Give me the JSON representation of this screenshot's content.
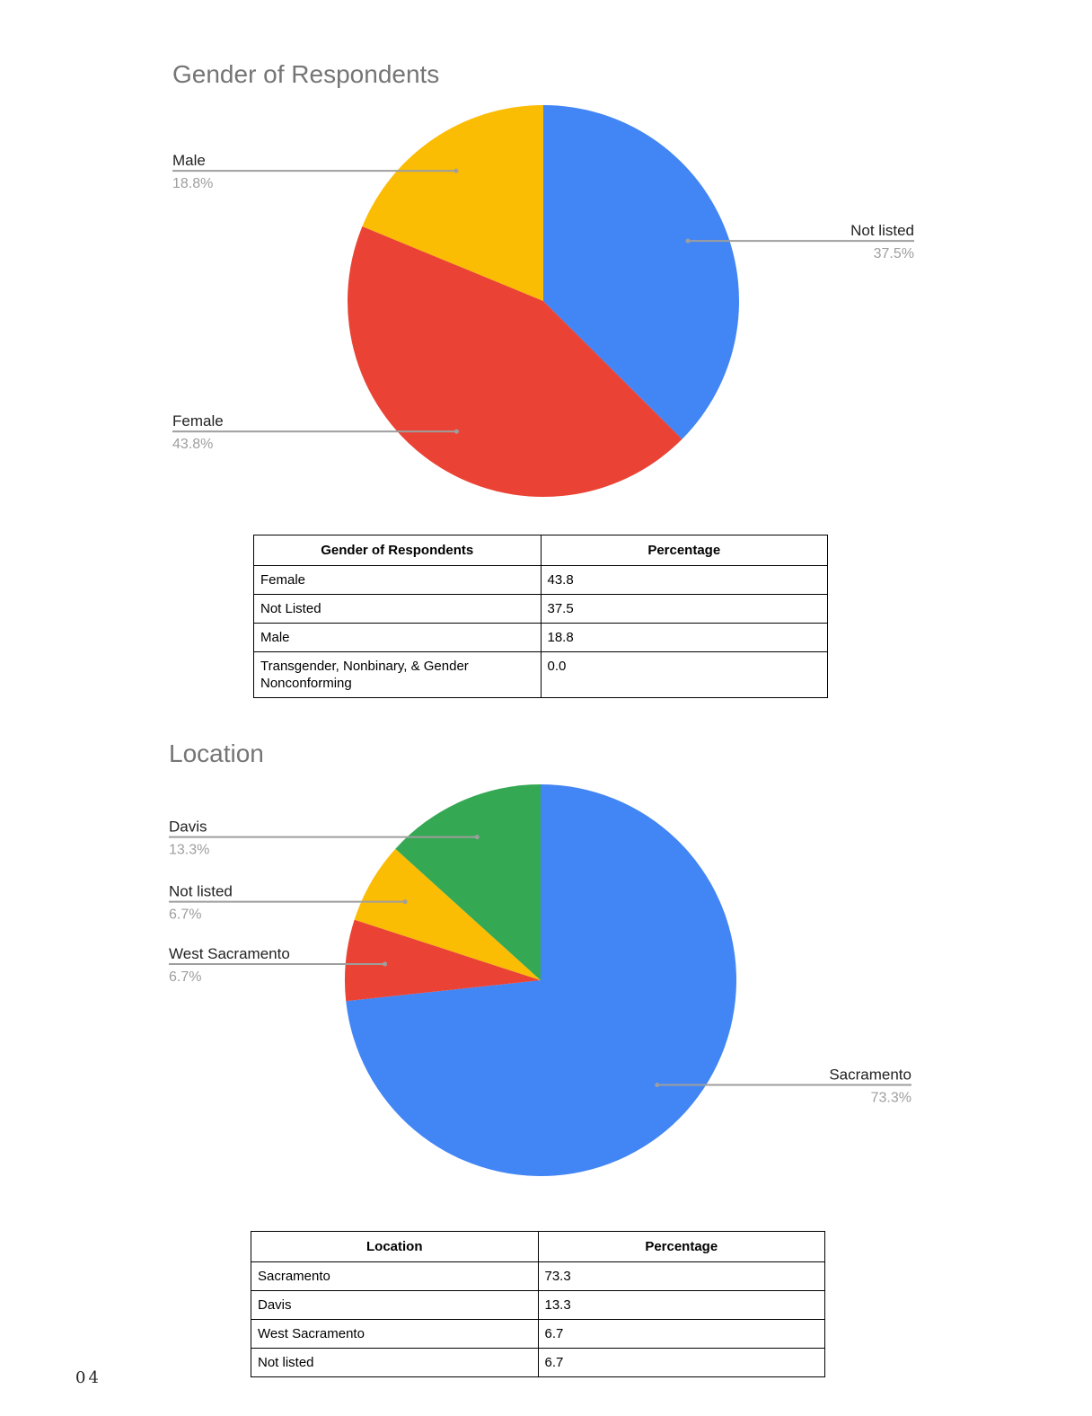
{
  "chart_data": [
    {
      "type": "pie",
      "title": "Gender of Respondents",
      "categories": [
        "Not listed",
        "Female",
        "Male"
      ],
      "values": [
        37.5,
        43.8,
        18.8
      ],
      "value_labels": [
        "37.5%",
        "43.8%",
        "18.8%"
      ],
      "colors": [
        "#4285f4",
        "#ea4335",
        "#fbbc04"
      ]
    },
    {
      "type": "pie",
      "title": "Location",
      "categories": [
        "Sacramento",
        "West Sacramento",
        "Not listed",
        "Davis"
      ],
      "values": [
        73.3,
        6.7,
        6.7,
        13.3
      ],
      "value_labels": [
        "73.3%",
        "6.7%",
        "6.7%",
        "13.3%"
      ],
      "colors": [
        "#4285f4",
        "#ea4335",
        "#fbbc04",
        "#34a853"
      ]
    }
  ],
  "tables": [
    {
      "header": [
        "Gender of Respondents",
        "Percentage"
      ],
      "rows": [
        [
          "Female",
          "43.8"
        ],
        [
          "Not Listed",
          "37.5"
        ],
        [
          "Male",
          "18.8"
        ],
        [
          "Transgender, Nonbinary, & Gender Nonconforming",
          "0.0"
        ]
      ]
    },
    {
      "header": [
        "Location",
        "Percentage"
      ],
      "rows": [
        [
          "Sacramento",
          "73.3"
        ],
        [
          "Davis",
          "13.3"
        ],
        [
          "West Sacramento",
          "6.7"
        ],
        [
          "Not listed",
          "6.7"
        ]
      ]
    }
  ],
  "page_number": "04"
}
